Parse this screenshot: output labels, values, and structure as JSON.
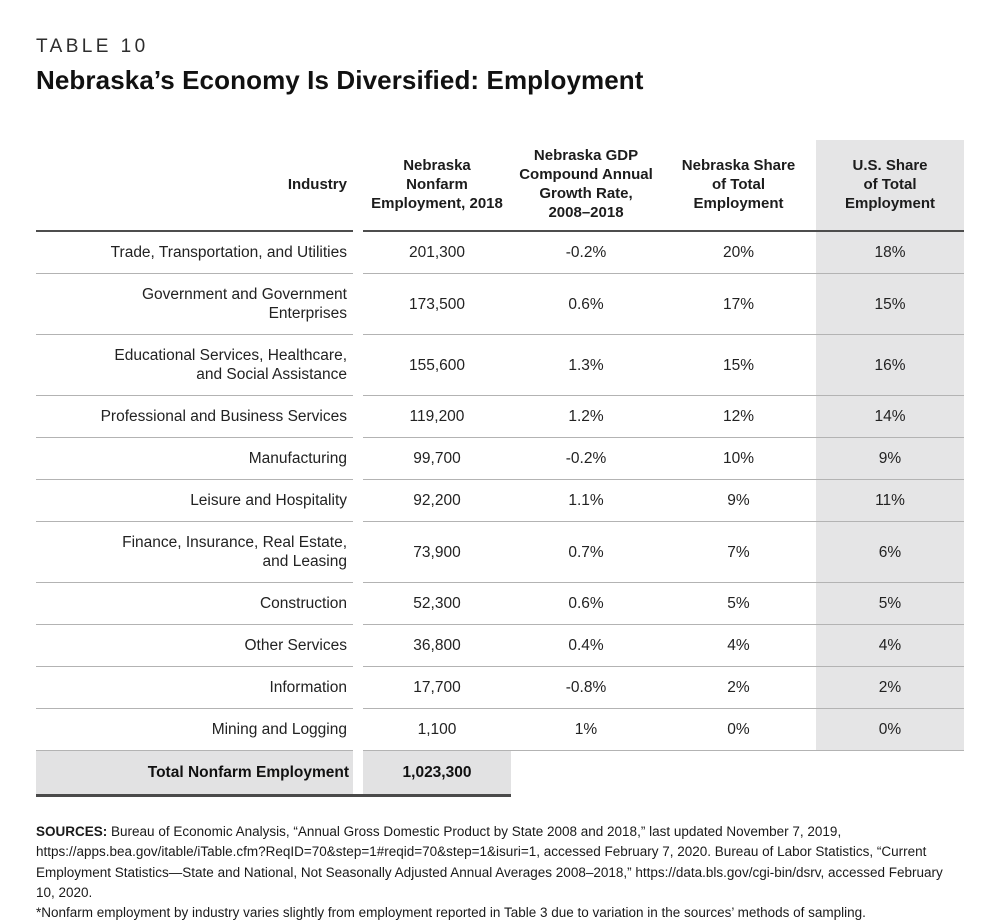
{
  "page": {
    "kicker": "TABLE 10",
    "title": "Nebraska’s Economy Is Diversified: Employment"
  },
  "table": {
    "columns": [
      "Industry",
      "Nebraska\nNonfarm\nEmployment, 2018",
      "Nebraska GDP\nCompound Annual\nGrowth Rate,\n2008–2018",
      "Nebraska Share\nof Total\nEmployment",
      "U.S. Share\nof Total\nEmployment"
    ],
    "rows": [
      {
        "industry": "Trade, Transportation, and Utilities",
        "employment": "201,300",
        "growth": "-0.2%",
        "ne_share": "20%",
        "us_share": "18%"
      },
      {
        "industry": "Government and Government\nEnterprises",
        "employment": "173,500",
        "growth": "0.6%",
        "ne_share": "17%",
        "us_share": "15%"
      },
      {
        "industry": "Educational Services, Healthcare,\nand Social Assistance",
        "employment": "155,600",
        "growth": "1.3%",
        "ne_share": "15%",
        "us_share": "16%"
      },
      {
        "industry": "Professional and Business Services",
        "employment": "119,200",
        "growth": "1.2%",
        "ne_share": "12%",
        "us_share": "14%"
      },
      {
        "industry": "Manufacturing",
        "employment": "99,700",
        "growth": "-0.2%",
        "ne_share": "10%",
        "us_share": "9%"
      },
      {
        "industry": "Leisure and Hospitality",
        "employment": "92,200",
        "growth": "1.1%",
        "ne_share": "9%",
        "us_share": "11%"
      },
      {
        "industry": "Finance, Insurance, Real Estate,\nand Leasing",
        "employment": "73,900",
        "growth": "0.7%",
        "ne_share": "7%",
        "us_share": "6%"
      },
      {
        "industry": "Construction",
        "employment": "52,300",
        "growth": "0.6%",
        "ne_share": "5%",
        "us_share": "5%"
      },
      {
        "industry": "Other Services",
        "employment": "36,800",
        "growth": "0.4%",
        "ne_share": "4%",
        "us_share": "4%"
      },
      {
        "industry": "Information",
        "employment": "17,700",
        "growth": "-0.8%",
        "ne_share": "2%",
        "us_share": "2%"
      },
      {
        "industry": "Mining and Logging",
        "employment": "1,100",
        "growth": "1%",
        "ne_share": "0%",
        "us_share": "0%"
      }
    ],
    "total": {
      "label": "Total Nonfarm Employment",
      "value": "1,023,300"
    }
  },
  "sources": {
    "label": "SOURCES:",
    "text": "Bureau of Economic Analysis, “Annual Gross Domestic Product by State 2008 and 2018,” last updated November 7, 2019, https://apps.bea.gov/itable/iTable.cfm?ReqID=70&step=1#reqid=70&step=1&isuri=1, accessed February 7, 2020. Bureau of Labor Statistics, “Current Employment Statistics—State and National, Not Seasonally Adjusted Annual Averages 2008–2018,” https://data.bls.gov/cgi-bin/dsrv, accessed February 10, 2020.",
    "note": "*Nonfarm employment by industry varies slightly from employment reported in Table 3 due to variation in the sources’ methods of sampling."
  },
  "colors": {
    "shaded_column_bg": "#e5e5e6",
    "total_row_bg": "#e2e2e3",
    "rule_light": "#b3b3b3",
    "rule_dark": "#4d4d4d"
  }
}
